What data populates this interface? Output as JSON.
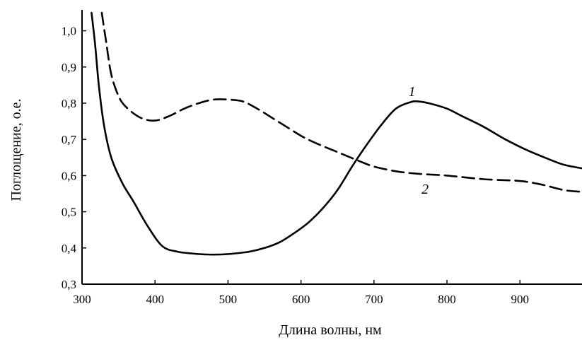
{
  "chart_data": {
    "type": "line",
    "xlabel": "Длина волны, нм",
    "ylabel": "Поглощение, о.е.",
    "xlim": [
      300,
      985
    ],
    "ylim": [
      0.3,
      1.05
    ],
    "x_ticks": [
      300,
      400,
      500,
      600,
      700,
      800,
      900
    ],
    "x_tick_labels": [
      "300",
      "400",
      "500",
      "600",
      "700",
      "800",
      "900"
    ],
    "y_ticks": [
      0.3,
      0.4,
      0.5,
      0.6,
      0.7,
      0.8,
      0.9,
      1.0
    ],
    "y_tick_labels": [
      "0,3",
      "0,4",
      "0,5",
      "0,6",
      "0,7",
      "0,8",
      "0,9",
      "1,0"
    ],
    "grid": false,
    "series": [
      {
        "name": "1",
        "style": "solid",
        "color": "#000000",
        "x": [
          313,
          318,
          323,
          330,
          340,
          355,
          370,
          390,
          410,
          430,
          450,
          470,
          490,
          510,
          530,
          550,
          570,
          590,
          610,
          630,
          650,
          670,
          690,
          710,
          730,
          750,
          760,
          775,
          800,
          820,
          850,
          880,
          910,
          940,
          960,
          985
        ],
        "y": [
          1.05,
          0.96,
          0.85,
          0.74,
          0.65,
          0.58,
          0.53,
          0.46,
          0.405,
          0.39,
          0.385,
          0.382,
          0.382,
          0.385,
          0.39,
          0.4,
          0.415,
          0.44,
          0.47,
          0.51,
          0.56,
          0.625,
          0.685,
          0.74,
          0.785,
          0.803,
          0.805,
          0.8,
          0.785,
          0.765,
          0.735,
          0.7,
          0.67,
          0.645,
          0.63,
          0.62
        ]
      },
      {
        "name": "2",
        "style": "dashed",
        "color": "#000000",
        "x": [
          327,
          333,
          340,
          350,
          360,
          380,
          400,
          420,
          440,
          460,
          480,
          500,
          520,
          540,
          560,
          580,
          600,
          620,
          650,
          680,
          700,
          730,
          760,
          800,
          850,
          900,
          930,
          960,
          985
        ],
        "y": [
          1.05,
          0.97,
          0.88,
          0.82,
          0.79,
          0.76,
          0.752,
          0.765,
          0.785,
          0.8,
          0.81,
          0.81,
          0.805,
          0.785,
          0.76,
          0.735,
          0.71,
          0.69,
          0.665,
          0.64,
          0.625,
          0.612,
          0.605,
          0.6,
          0.59,
          0.585,
          0.575,
          0.56,
          0.555
        ]
      }
    ],
    "series_labels": [
      {
        "text": "1",
        "x": 752,
        "y": 0.82
      },
      {
        "text": "2",
        "x": 770,
        "y": 0.55
      }
    ]
  }
}
